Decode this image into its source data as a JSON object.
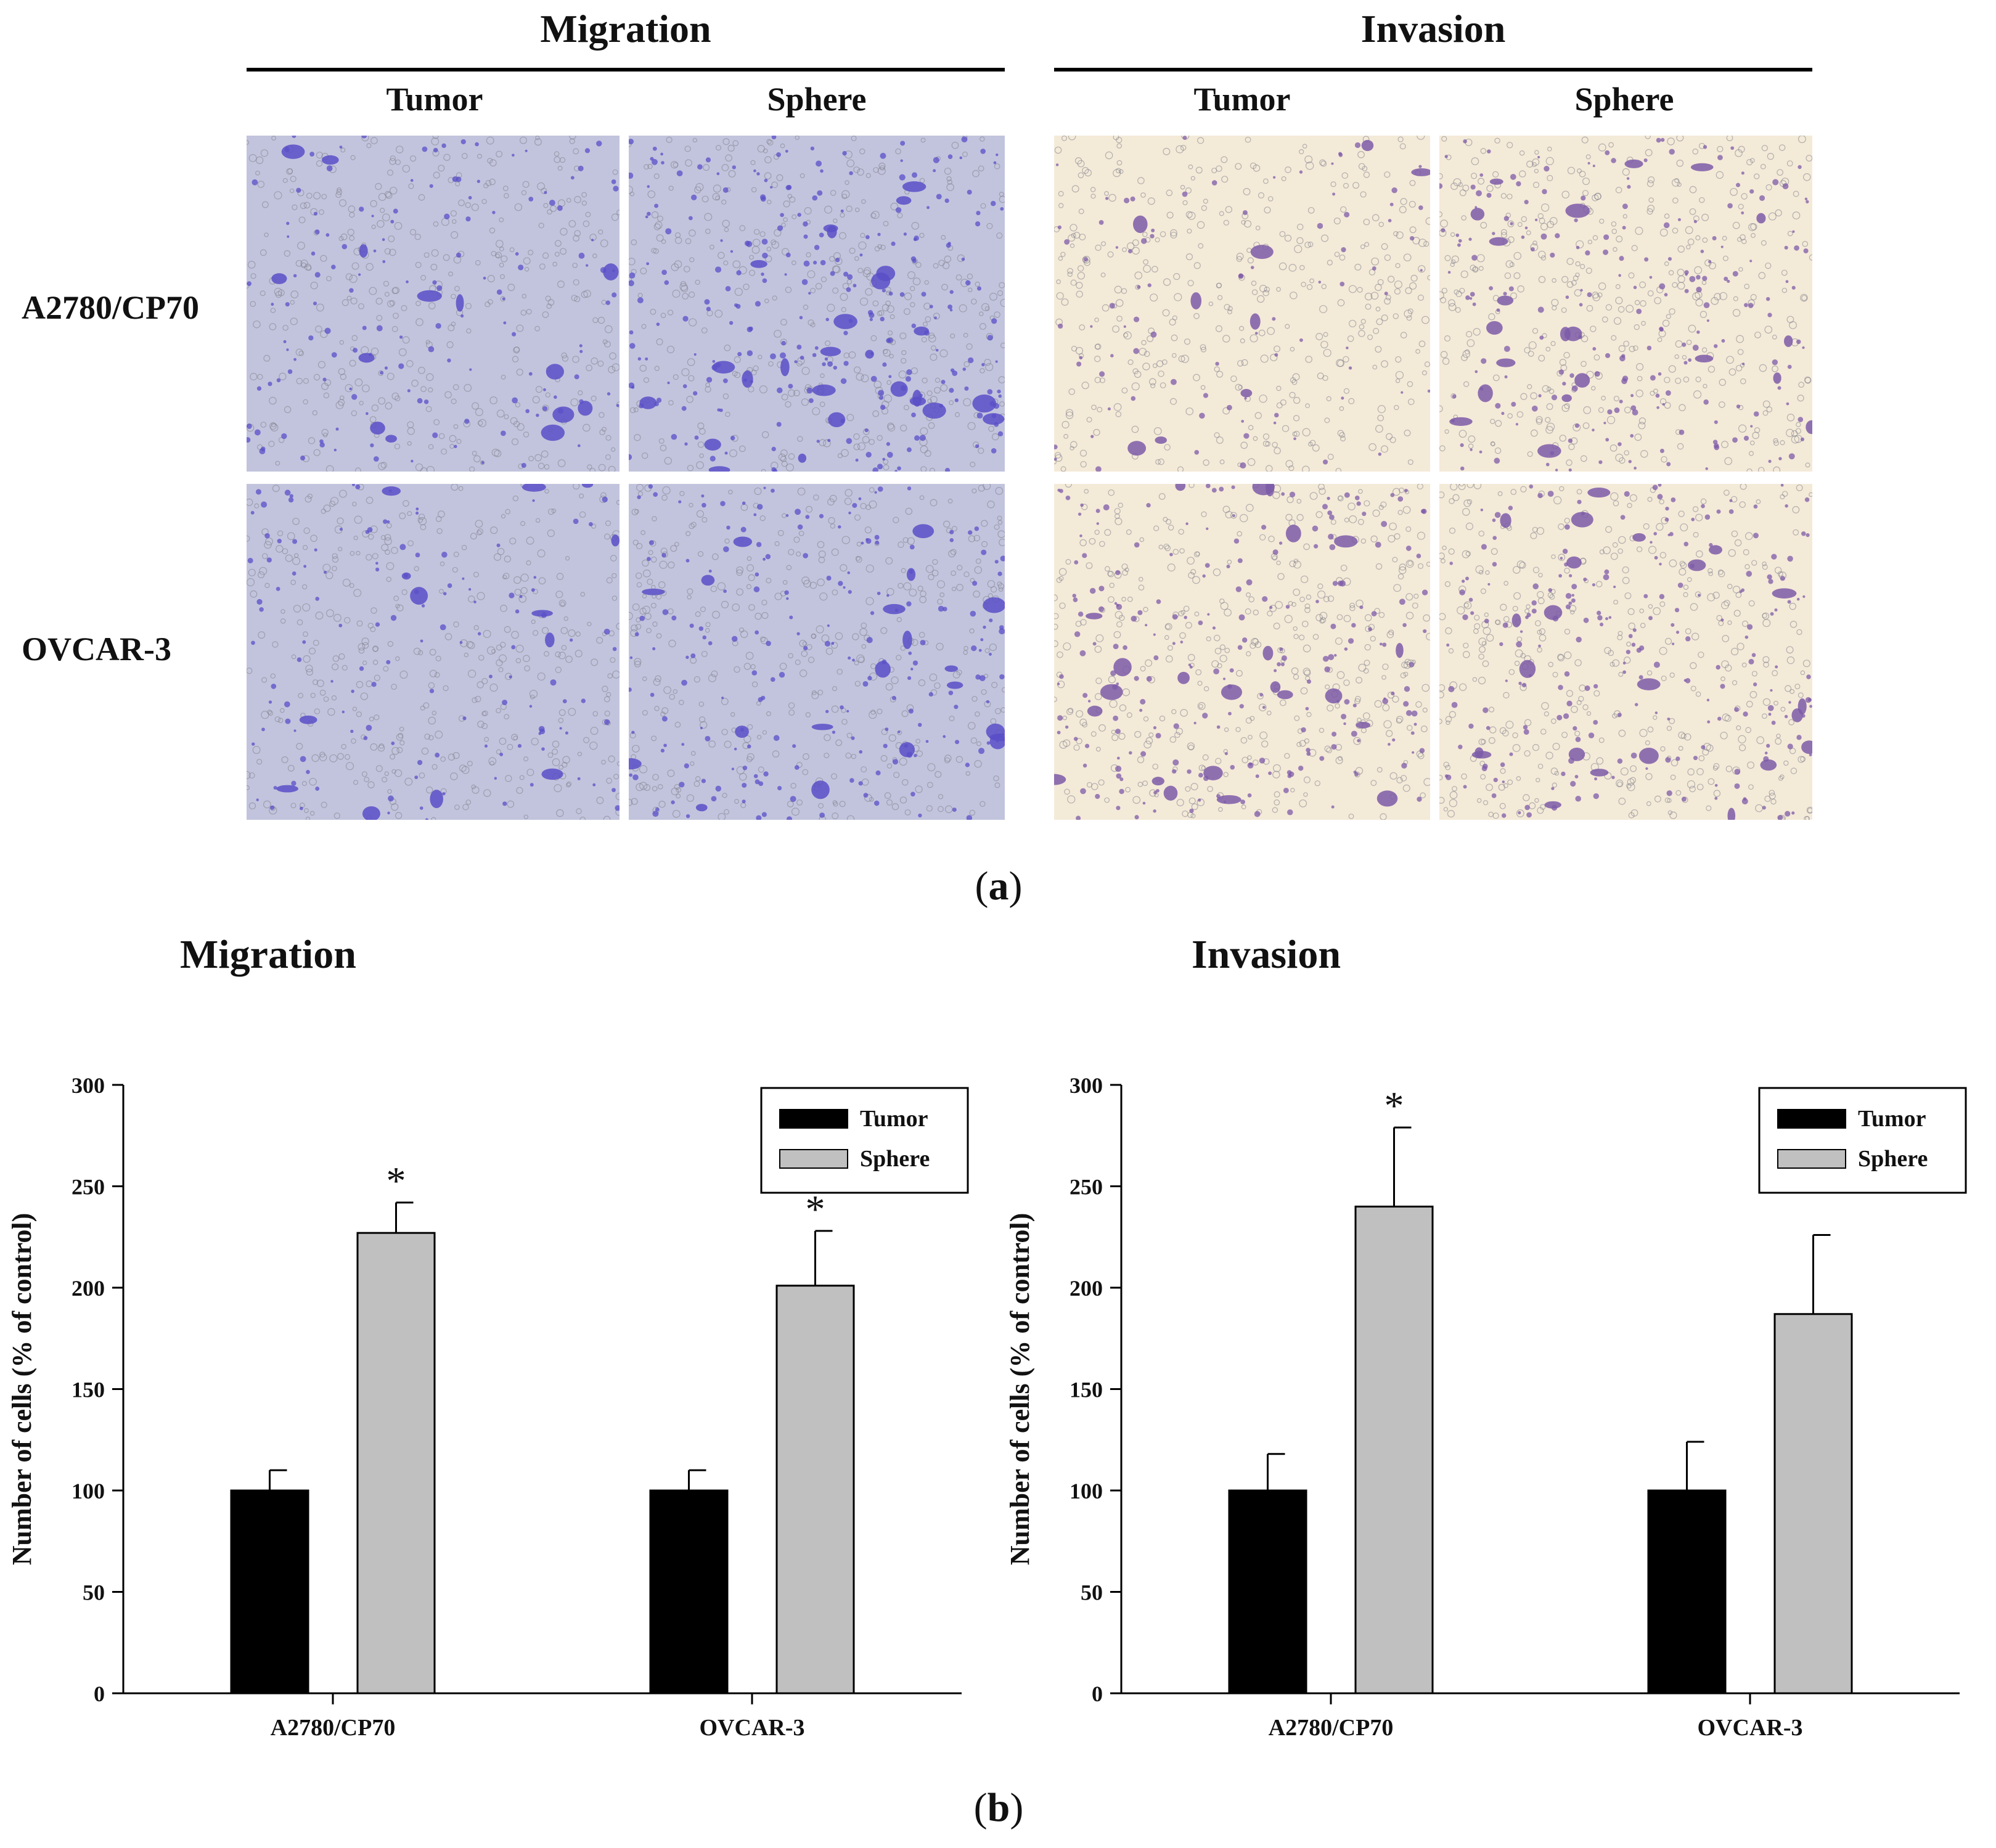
{
  "panel_a": {
    "label": "a",
    "sections": [
      {
        "title": "Migration",
        "columns": [
          "Tumor",
          "Sphere"
        ],
        "tint": "#c2c4dd",
        "cell": "#5a4fc8"
      },
      {
        "title": "Invasion",
        "columns": [
          "Tumor",
          "Sphere"
        ],
        "tint": "#f4ead8",
        "cell": "#7d5aa8"
      }
    ],
    "rows": [
      "A2780/CP70",
      "OVCAR-3"
    ]
  },
  "panel_b": {
    "label": "b"
  },
  "colors": {
    "tumor": "#000000",
    "sphere": "#c0c0c0"
  },
  "chart_data": [
    {
      "type": "bar",
      "title": "Migration",
      "xlabel": "",
      "ylabel": "Number of cells (% of control)",
      "ylim": [
        0,
        300
      ],
      "yticks": [
        0,
        50,
        100,
        150,
        200,
        250,
        300
      ],
      "categories": [
        "A2780/CP70",
        "OVCAR-3"
      ],
      "series": [
        {
          "name": "Tumor",
          "values": [
            100,
            100
          ],
          "errors": [
            10,
            10
          ],
          "color": "#000000"
        },
        {
          "name": "Sphere",
          "values": [
            227,
            201
          ],
          "errors": [
            15,
            27
          ],
          "color": "#c0c0c0"
        }
      ],
      "significance": [
        [
          null,
          null
        ],
        [
          "*",
          "*"
        ]
      ],
      "legend": "top-right",
      "grid": false
    },
    {
      "type": "bar",
      "title": "Invasion",
      "xlabel": "",
      "ylabel": "Number of cells (% of control)",
      "ylim": [
        0,
        300
      ],
      "yticks": [
        0,
        50,
        100,
        150,
        200,
        250,
        300
      ],
      "categories": [
        "A2780/CP70",
        "OVCAR-3"
      ],
      "series": [
        {
          "name": "Tumor",
          "values": [
            100,
            100
          ],
          "errors": [
            18,
            24
          ],
          "color": "#000000"
        },
        {
          "name": "Sphere",
          "values": [
            240,
            187
          ],
          "errors": [
            39,
            39
          ],
          "color": "#c0c0c0"
        }
      ],
      "significance": [
        [
          null,
          null
        ],
        [
          "*",
          null
        ]
      ],
      "legend": "top-right",
      "grid": false
    }
  ]
}
